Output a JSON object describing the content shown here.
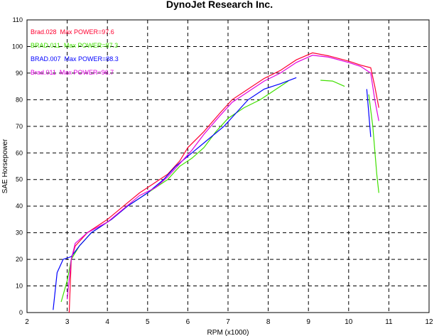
{
  "chart_data": {
    "type": "line",
    "title": "DynoJet Research Inc.",
    "xlabel": "RPM (x1000)",
    "ylabel": "SAE Horsepower",
    "xlim": [
      2,
      12
    ],
    "ylim": [
      0,
      110
    ],
    "xticks": [
      2,
      3,
      4,
      5,
      6,
      7,
      8,
      9,
      10,
      11,
      12
    ],
    "yticks": [
      0,
      10,
      20,
      30,
      40,
      50,
      60,
      70,
      80,
      90,
      100,
      110
    ],
    "grid": true,
    "legend_position": "top-left",
    "series": [
      {
        "name": "Brad.028  Max POWER=97.6",
        "color": "#ff0030",
        "points": [
          [
            3.05,
            0
          ],
          [
            3.1,
            20
          ],
          [
            3.2,
            25
          ],
          [
            3.5,
            30
          ],
          [
            4.0,
            35
          ],
          [
            4.4,
            40
          ],
          [
            4.8,
            45
          ],
          [
            5.1,
            48
          ],
          [
            5.5,
            52
          ],
          [
            5.8,
            57
          ],
          [
            6.0,
            62
          ],
          [
            6.4,
            68
          ],
          [
            6.8,
            75
          ],
          [
            7.1,
            80
          ],
          [
            7.5,
            84
          ],
          [
            7.9,
            88
          ],
          [
            8.3,
            91
          ],
          [
            8.7,
            95
          ],
          [
            9.1,
            97.6
          ],
          [
            9.5,
            96.5
          ],
          [
            10.0,
            94.5
          ],
          [
            10.3,
            93
          ],
          [
            10.55,
            92
          ],
          [
            10.65,
            85
          ],
          [
            10.75,
            77
          ]
        ]
      },
      {
        "name": "BRAD.011  Max POWER=87.3",
        "color": "#40e000",
        "points": [
          [
            2.85,
            4
          ],
          [
            3.0,
            12
          ],
          [
            3.1,
            20
          ],
          [
            3.3,
            25
          ],
          [
            3.6,
            30
          ],
          [
            4.1,
            35
          ],
          [
            4.5,
            40
          ],
          [
            5.0,
            45
          ],
          [
            5.5,
            50
          ],
          [
            5.8,
            55
          ],
          [
            6.1,
            58
          ],
          [
            6.4,
            62
          ],
          [
            6.7,
            68
          ],
          [
            7.0,
            73
          ],
          [
            7.4,
            77
          ],
          [
            7.8,
            80
          ],
          [
            8.2,
            84
          ],
          [
            8.5,
            87
          ],
          null,
          [
            9.3,
            87.3
          ],
          [
            9.6,
            87
          ],
          [
            9.9,
            85
          ],
          null,
          [
            10.5,
            82
          ],
          [
            10.6,
            70
          ],
          [
            10.7,
            52
          ],
          [
            10.75,
            45
          ]
        ]
      },
      {
        "name": "BRAD.007  Max POWER=88.3",
        "color": "#0000ff",
        "points": [
          [
            2.65,
            1
          ],
          [
            2.75,
            15
          ],
          [
            2.9,
            20
          ],
          [
            3.1,
            21
          ],
          [
            3.3,
            25
          ],
          [
            3.6,
            30
          ],
          [
            4.1,
            35
          ],
          [
            4.5,
            40
          ],
          [
            5.0,
            45
          ],
          [
            5.4,
            50
          ],
          [
            5.7,
            55
          ],
          [
            6.1,
            60
          ],
          [
            6.5,
            65
          ],
          [
            6.9,
            70
          ],
          [
            7.2,
            75
          ],
          [
            7.5,
            80
          ],
          [
            7.9,
            84
          ],
          [
            8.3,
            86
          ],
          [
            8.7,
            88.3
          ],
          null,
          [
            10.45,
            84
          ],
          [
            10.5,
            75
          ],
          [
            10.55,
            66
          ]
        ]
      },
      {
        "name": "Brad.011  Max POWER=96.7",
        "color": "#e000e0",
        "points": [
          [
            3.0,
            5
          ],
          [
            3.1,
            20
          ],
          [
            3.2,
            26
          ],
          [
            3.5,
            30
          ],
          [
            4.0,
            34
          ],
          [
            4.4,
            39
          ],
          [
            4.8,
            44
          ],
          [
            5.2,
            47
          ],
          [
            5.5,
            51
          ],
          [
            5.8,
            56
          ],
          [
            6.1,
            61
          ],
          [
            6.4,
            67
          ],
          [
            6.8,
            74
          ],
          [
            7.1,
            79
          ],
          [
            7.5,
            83
          ],
          [
            7.9,
            87
          ],
          [
            8.3,
            90
          ],
          [
            8.7,
            94
          ],
          [
            9.1,
            96.7
          ],
          [
            9.5,
            96
          ],
          [
            10.0,
            94
          ],
          [
            10.3,
            92.5
          ],
          [
            10.55,
            90
          ],
          [
            10.65,
            80
          ],
          [
            10.75,
            72
          ]
        ]
      }
    ]
  }
}
